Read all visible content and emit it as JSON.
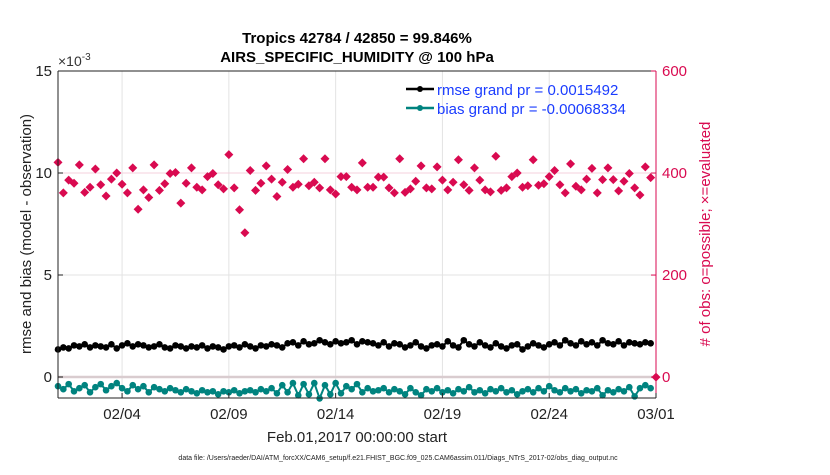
{
  "chart_data": {
    "type": "line",
    "title": [
      "Tropics 42784 / 42850 = 99.846%",
      "AIRS_SPECIFIC_HUMIDITY @ 100 hPa"
    ],
    "xlabel": "Feb.01,2017 00:00:00 start",
    "ylabel_left": "rmse and bias (model - observation)",
    "ylabel_right": "# of obs: o=possible; ×=evaluated",
    "left_exponent_label": "×10",
    "left_exponent": "-3",
    "x_tick_labels": [
      "02/04",
      "02/09",
      "02/14",
      "02/19",
      "02/24",
      "03/01"
    ],
    "x_tick_days": [
      3,
      8,
      13,
      18,
      23,
      28
    ],
    "xlim_days": [
      0,
      28
    ],
    "x_start_day": 0,
    "x_step_days": 0.25,
    "left_ticks": [
      "0",
      "5",
      "10",
      "15"
    ],
    "left_tick_values": [
      0,
      5,
      10,
      15
    ],
    "ylim_left_e3": [
      -1.03,
      15
    ],
    "right_ticks": [
      "0",
      "200",
      "400",
      "600"
    ],
    "right_tick_values": [
      0,
      200,
      400,
      600
    ],
    "ylim_right": [
      -41,
      600
    ],
    "grid": true,
    "legend_placement": "top-right",
    "colors": {
      "rmse": "#000000",
      "bias": "#00837f",
      "obs": "#d90a50",
      "legend_text": "#1a3cff"
    },
    "series": [
      {
        "name": "rmse grand pr = 0.0015492",
        "axis": "left",
        "units": "1e-3",
        "values": [
          1.35,
          1.45,
          1.4,
          1.55,
          1.5,
          1.6,
          1.45,
          1.55,
          1.5,
          1.45,
          1.6,
          1.4,
          1.55,
          1.65,
          1.5,
          1.6,
          1.55,
          1.45,
          1.5,
          1.6,
          1.45,
          1.4,
          1.55,
          1.5,
          1.4,
          1.5,
          1.45,
          1.55,
          1.4,
          1.5,
          1.45,
          1.35,
          1.5,
          1.55,
          1.45,
          1.6,
          1.5,
          1.4,
          1.55,
          1.5,
          1.6,
          1.55,
          1.45,
          1.65,
          1.7,
          1.55,
          1.75,
          1.6,
          1.65,
          1.8,
          1.7,
          1.6,
          1.75,
          1.65,
          1.7,
          1.8,
          1.6,
          1.75,
          1.7,
          1.65,
          1.55,
          1.7,
          1.5,
          1.65,
          1.6,
          1.45,
          1.55,
          1.7,
          1.5,
          1.4,
          1.55,
          1.6,
          1.5,
          1.75,
          1.55,
          1.45,
          1.8,
          1.6,
          1.5,
          1.7,
          1.55,
          1.45,
          1.65,
          1.5,
          1.4,
          1.55,
          1.6,
          1.35,
          1.5,
          1.65,
          1.55,
          1.45,
          1.6,
          1.7,
          1.55,
          1.8,
          1.65,
          1.55,
          1.75,
          1.6,
          1.7,
          1.55,
          1.8,
          1.65,
          1.6,
          1.75,
          1.55,
          1.7,
          1.65,
          1.6,
          1.7,
          1.65
        ]
      },
      {
        "name": "bias grand pr = -0.00068334",
        "axis": "left",
        "units": "1e-3",
        "values": [
          -0.45,
          -0.6,
          -0.35,
          -0.7,
          -0.55,
          -0.4,
          -0.75,
          -0.5,
          -0.35,
          -0.65,
          -0.45,
          -0.3,
          -0.55,
          -0.7,
          -0.4,
          -0.6,
          -0.45,
          -0.75,
          -0.5,
          -0.6,
          -0.7,
          -0.55,
          -0.65,
          -0.75,
          -0.6,
          -0.7,
          -0.8,
          -0.65,
          -0.75,
          -0.7,
          -0.85,
          -0.7,
          -0.75,
          -0.65,
          -0.8,
          -0.7,
          -0.65,
          -0.75,
          -0.6,
          -0.7,
          -0.55,
          -0.8,
          -0.4,
          -0.75,
          -0.3,
          -0.9,
          -0.35,
          -0.85,
          -0.3,
          -1.05,
          -0.4,
          -0.85,
          -0.3,
          -0.8,
          -0.45,
          -0.6,
          -0.35,
          -0.75,
          -0.55,
          -0.7,
          -0.65,
          -0.55,
          -0.75,
          -0.6,
          -0.7,
          -0.85,
          -0.55,
          -0.75,
          -0.9,
          -0.6,
          -0.7,
          -0.55,
          -0.75,
          -0.65,
          -0.8,
          -0.6,
          -0.7,
          -0.5,
          -0.75,
          -0.65,
          -0.8,
          -0.6,
          -0.7,
          -0.55,
          -0.75,
          -0.65,
          -0.85,
          -0.7,
          -0.6,
          -0.75,
          -0.55,
          -0.7,
          -0.45,
          -0.65,
          -0.75,
          -0.55,
          -0.7,
          -0.6,
          -0.8,
          -0.65,
          -0.7,
          -0.55,
          -0.9,
          -0.65,
          -0.75,
          -0.6,
          -0.7,
          -0.5,
          -0.95,
          -0.55,
          -0.4,
          -0.55
        ]
      },
      {
        "name": "obs evaluated",
        "axis": "right",
        "values": [
          421,
          361,
          386,
          380,
          416,
          362,
          372,
          408,
          377,
          355,
          388,
          400,
          378,
          361,
          410,
          329,
          367,
          352,
          416,
          366,
          379,
          399,
          401,
          341,
          380,
          410,
          372,
          367,
          393,
          399,
          377,
          369,
          436,
          371,
          328,
          283,
          405,
          366,
          380,
          414,
          388,
          354,
          382,
          407,
          372,
          378,
          428,
          375,
          382,
          371,
          428,
          367,
          359,
          393,
          393,
          372,
          367,
          420,
          372,
          372,
          392,
          392,
          371,
          361,
          428,
          362,
          369,
          384,
          414,
          371,
          369,
          412,
          386,
          367,
          382,
          426,
          377,
          366,
          410,
          386,
          367,
          363,
          433,
          366,
          371,
          393,
          400,
          372,
          375,
          426,
          376,
          379,
          393,
          405,
          377,
          361,
          418,
          374,
          367,
          388,
          409,
          361,
          387,
          410,
          387,
          365,
          384,
          399,
          371,
          357,
          412,
          391,
          0
        ]
      }
    ]
  },
  "footer": "data file: /Users/raeder/DAI/ATM_forcXX/CAM6_setup/f.e21.FHIST_BGC.f09_025.CAM6assim.011/Diags_NTrS_2017-02/obs_diag_output.nc"
}
